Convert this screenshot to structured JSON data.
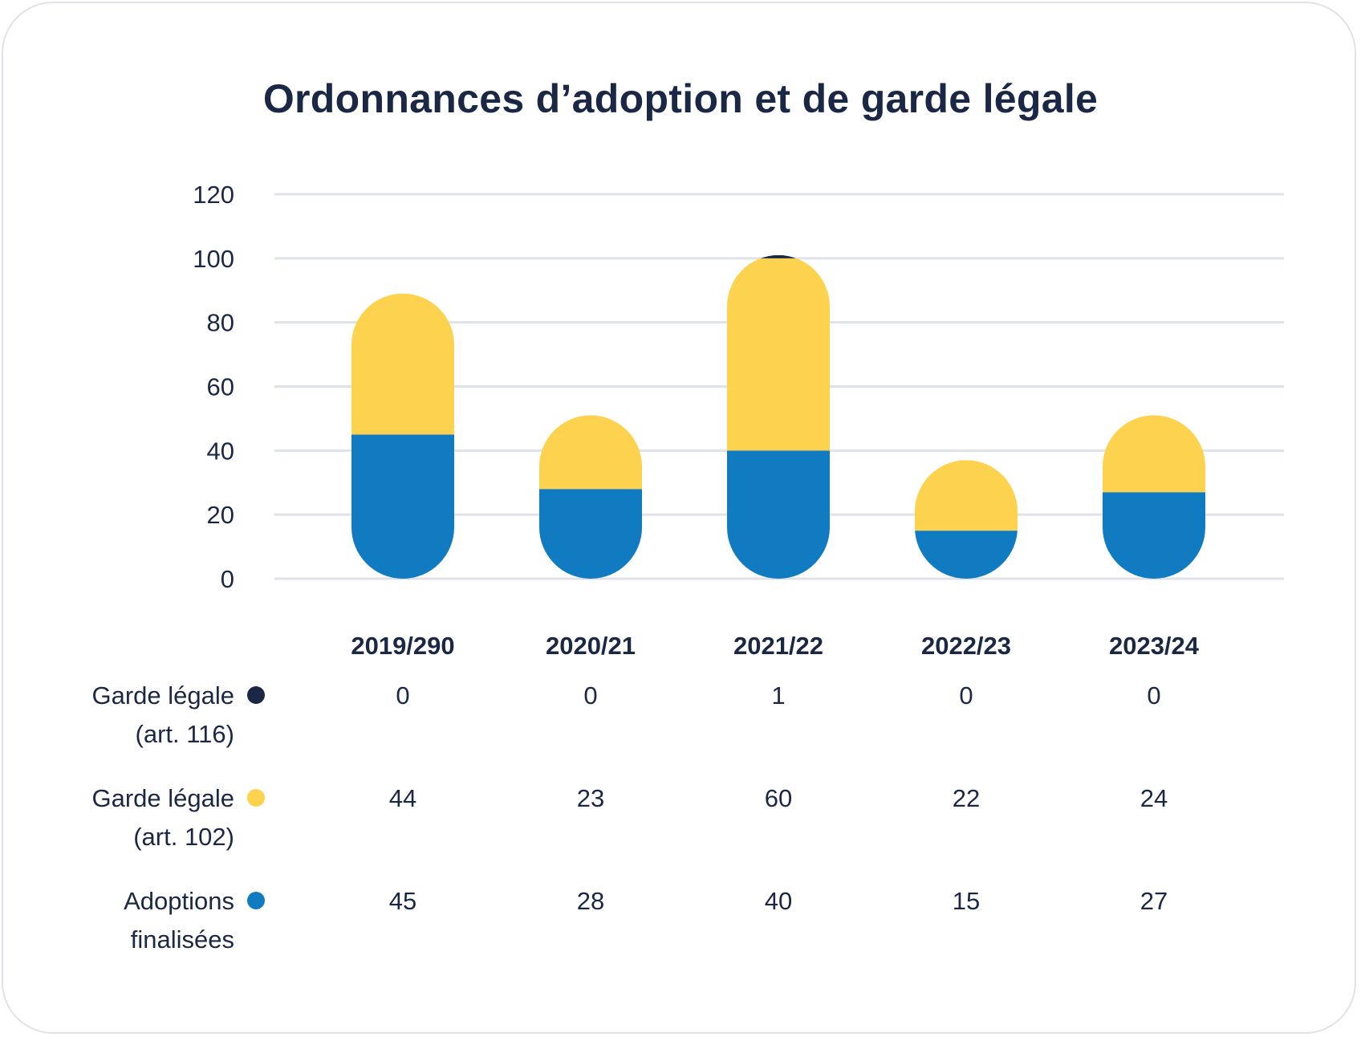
{
  "title": "Ordonnances d’adoption et de garde légale",
  "colors": {
    "garde_116": "#1b2845",
    "garde_102": "#fdd24f",
    "adoptions": "#107bc0",
    "grid": "#dfe2e6",
    "text": "#1b2845"
  },
  "chart_data": {
    "type": "bar",
    "stacked": true,
    "title": "Ordonnances d’adoption et de garde légale",
    "categories": [
      "2019/290",
      "2020/21",
      "2021/22",
      "2022/23",
      "2023/24"
    ],
    "ylim": [
      0,
      120
    ],
    "yticks": [
      0,
      20,
      40,
      60,
      80,
      100,
      120
    ],
    "grid": true,
    "series": [
      {
        "name": "Adoptions finalisées",
        "label_lines": [
          "Adoptions",
          "finalisées"
        ],
        "color": "#107bc0",
        "values": [
          45,
          28,
          40,
          15,
          27
        ]
      },
      {
        "name": "Garde légale (art. 102)",
        "label_lines": [
          "Garde légale",
          "(art. 102)"
        ],
        "color": "#fdd24f",
        "values": [
          44,
          23,
          60,
          22,
          24
        ]
      },
      {
        "name": "Garde légale (art. 116)",
        "label_lines": [
          "Garde légale",
          "(art. 116)"
        ],
        "color": "#1b2845",
        "values": [
          0,
          0,
          1,
          0,
          0
        ]
      }
    ],
    "table_rows": [
      {
        "series": "Garde légale (art. 116)",
        "label_lines": [
          "Garde légale",
          "(art. 116)"
        ],
        "color": "#1b2845",
        "values": [
          "0",
          "0",
          "1",
          "0",
          "0"
        ]
      },
      {
        "series": "Garde légale (art. 102)",
        "label_lines": [
          "Garde légale",
          "(art. 102)"
        ],
        "color": "#fdd24f",
        "values": [
          "44",
          "23",
          "60",
          "22",
          "24"
        ]
      },
      {
        "series": "Adoptions finalisées",
        "label_lines": [
          "Adoptions",
          "finalisées"
        ],
        "color": "#107bc0",
        "values": [
          "45",
          "28",
          "40",
          "15",
          "27"
        ]
      }
    ]
  }
}
